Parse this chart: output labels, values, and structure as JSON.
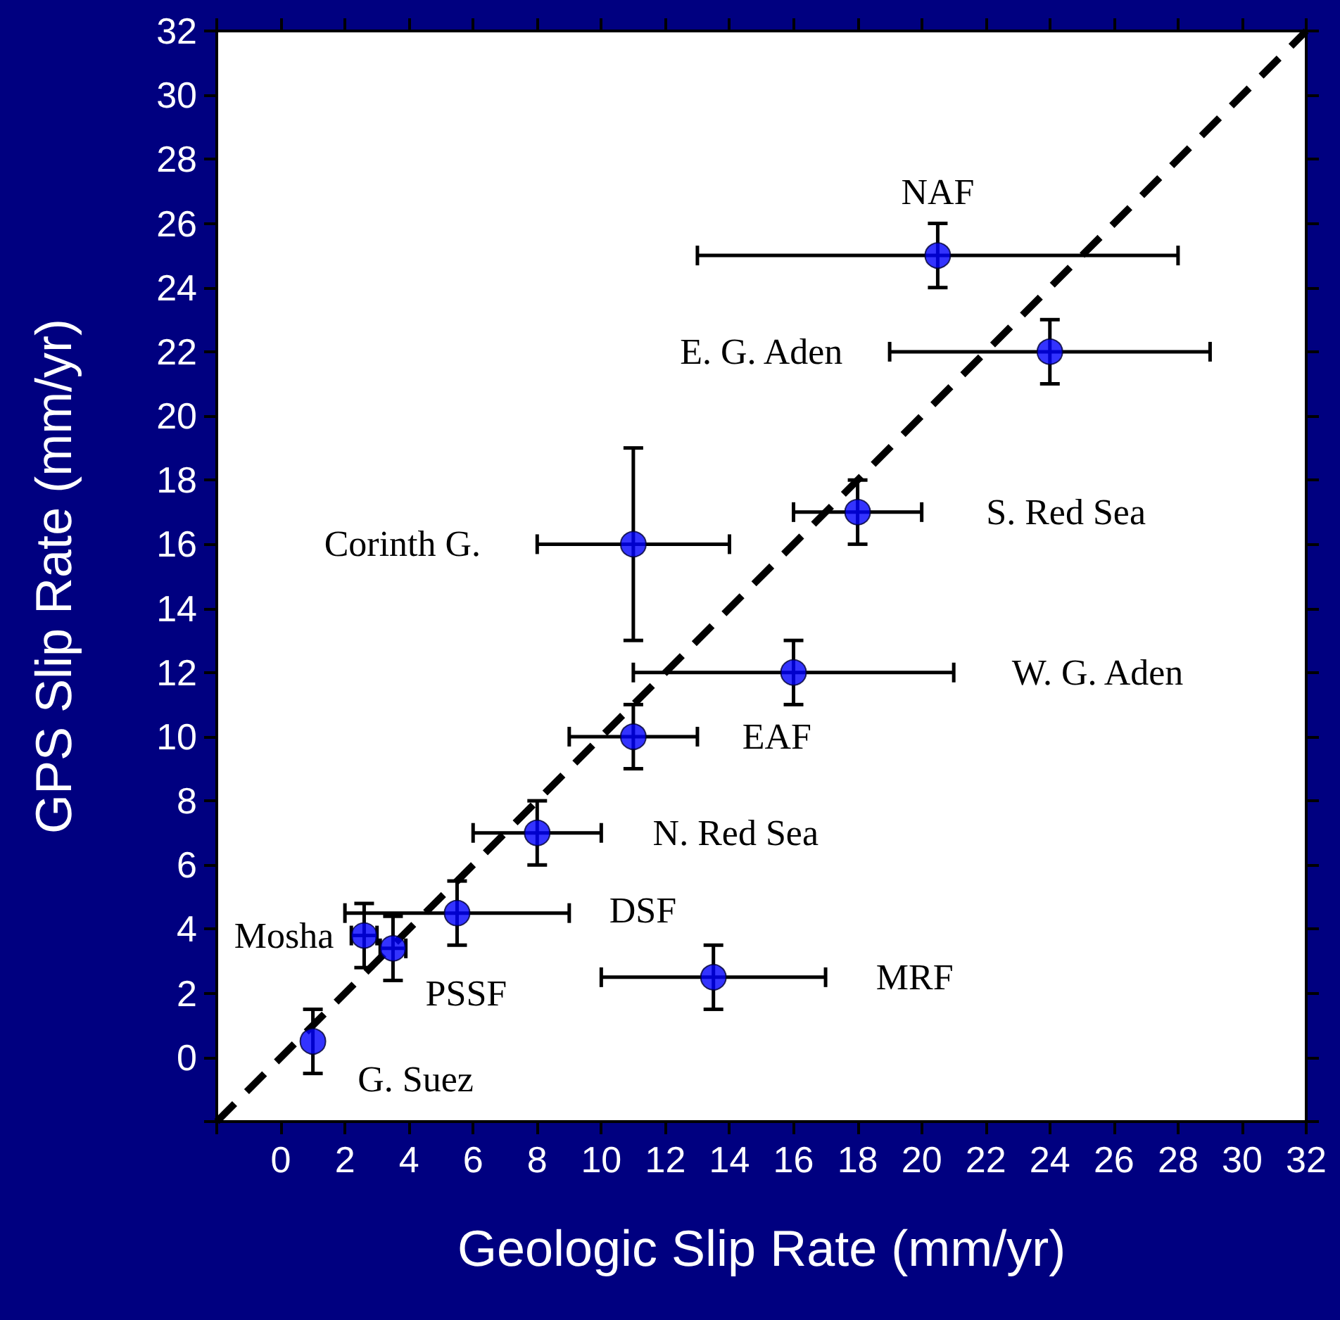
{
  "chart_data": {
    "type": "scatter",
    "xlabel": "Geologic Slip Rate (mm/yr)",
    "ylabel": "GPS Slip Rate (mm/yr)",
    "xlim": [
      -2,
      32
    ],
    "ylim": [
      -2,
      32
    ],
    "xticks": [
      {
        "value": -2,
        "label": null
      },
      0,
      2,
      4,
      6,
      8,
      10,
      12,
      14,
      16,
      18,
      20,
      22,
      24,
      26,
      28,
      30,
      32
    ],
    "yticks": [
      {
        "value": -2,
        "label": null
      },
      0,
      2,
      4,
      6,
      8,
      10,
      12,
      14,
      16,
      18,
      20,
      22,
      24,
      26,
      28,
      30,
      32
    ],
    "grid": false,
    "series": [
      {
        "type": "line",
        "color": "#000000",
        "line_style": "dashed",
        "marker": "none",
        "x": [
          -2,
          32
        ],
        "values": [
          -2,
          32
        ]
      },
      {
        "color": "#0000ff",
        "marker": "circle",
        "x": [
          20.5,
          24,
          18,
          11,
          16,
          11,
          8,
          5.5,
          2.6,
          3.5,
          13.5,
          1
        ],
        "values": [
          25,
          22,
          17,
          16,
          12,
          10,
          7,
          4.5,
          3.8,
          3.4,
          2.5,
          0.5
        ],
        "xerrors": [
          7.5,
          5,
          2,
          3,
          5,
          2,
          2,
          3.5,
          0.4,
          0.4,
          3.5,
          null
        ],
        "errors": [
          1,
          1,
          1,
          3,
          1,
          1,
          1,
          1,
          1,
          1,
          1,
          1
        ]
      }
    ],
    "annotations": [
      "NAF",
      "E. G. Aden",
      "S. Red Sea",
      "Corinth G.",
      "W. G. Aden",
      "EAF",
      "N. Red Sea",
      "DSF",
      "Mosha",
      "PSSF",
      "MRF",
      "G. Suez"
    ]
  }
}
